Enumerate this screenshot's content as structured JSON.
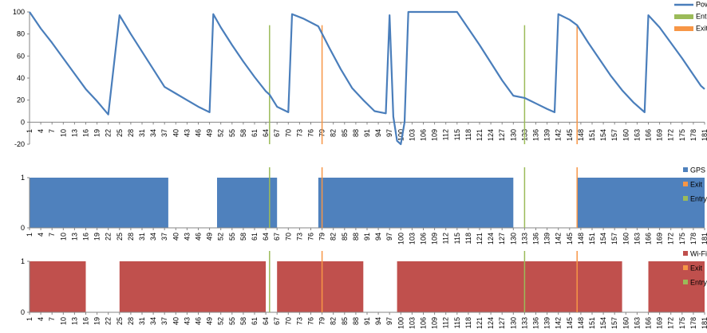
{
  "chart_data": [
    {
      "type": "line",
      "title": "",
      "xlabel": "",
      "ylabel": "",
      "ylim": [
        -20,
        100
      ],
      "yticks": [
        -20,
        0,
        20,
        40,
        60,
        80,
        100
      ],
      "xlim": [
        1,
        181
      ],
      "xtick_start": 1,
      "xtick_step": 3,
      "grid": false,
      "legend": "top-right",
      "series": [
        {
          "name": "Power",
          "color": "#4a7ebb",
          "points": [
            [
              1,
              100
            ],
            [
              2,
              95
            ],
            [
              4,
              85
            ],
            [
              7,
              72
            ],
            [
              10,
              58
            ],
            [
              13,
              44
            ],
            [
              16,
              30
            ],
            [
              19,
              19
            ],
            [
              22,
              7
            ],
            [
              25,
              97
            ],
            [
              28,
              80
            ],
            [
              31,
              64
            ],
            [
              34,
              48
            ],
            [
              37,
              32
            ],
            [
              40,
              26
            ],
            [
              43,
              20
            ],
            [
              46,
              14
            ],
            [
              49,
              9
            ],
            [
              50,
              98
            ],
            [
              52,
              86
            ],
            [
              55,
              70
            ],
            [
              58,
              55
            ],
            [
              61,
              41
            ],
            [
              64,
              28
            ],
            [
              65,
              25
            ],
            [
              67,
              14
            ],
            [
              70,
              9
            ],
            [
              71,
              98
            ],
            [
              74,
              94
            ],
            [
              78,
              87
            ],
            [
              81,
              67
            ],
            [
              84,
              48
            ],
            [
              87,
              31
            ],
            [
              90,
              20
            ],
            [
              93,
              10
            ],
            [
              96,
              8
            ],
            [
              97,
              97
            ],
            [
              98,
              5
            ],
            [
              99,
              -17
            ],
            [
              100,
              -20
            ],
            [
              101,
              0
            ],
            [
              102,
              100
            ],
            [
              105,
              100
            ],
            [
              110,
              100
            ],
            [
              115,
              100
            ],
            [
              118,
              85
            ],
            [
              121,
              70
            ],
            [
              124,
              54
            ],
            [
              127,
              38
            ],
            [
              130,
              24
            ],
            [
              133,
              22
            ],
            [
              136,
              17
            ],
            [
              139,
              12
            ],
            [
              141,
              9
            ],
            [
              142,
              98
            ],
            [
              145,
              93
            ],
            [
              147,
              88
            ],
            [
              150,
              72
            ],
            [
              153,
              57
            ],
            [
              156,
              42
            ],
            [
              159,
              29
            ],
            [
              162,
              18
            ],
            [
              165,
              9
            ],
            [
              166,
              97
            ],
            [
              169,
              86
            ],
            [
              172,
              72
            ],
            [
              175,
              58
            ],
            [
              178,
              43
            ],
            [
              180,
              33
            ],
            [
              181,
              30
            ]
          ]
        },
        {
          "name": "Entry",
          "color": "#9bbb59",
          "x": [
            65,
            133
          ]
        },
        {
          "name": "Exit",
          "color": "#f79646",
          "x": [
            79,
            147
          ]
        }
      ]
    },
    {
      "type": "bar",
      "title": "",
      "xlabel": "",
      "ylabel": "",
      "ylim": [
        0,
        1
      ],
      "yticks": [
        0,
        1
      ],
      "xlim": [
        1,
        181
      ],
      "xtick_start": 1,
      "xtick_step": 3,
      "grid": false,
      "legend": "right",
      "series": [
        {
          "name": "GPS",
          "color": "#4f81bd",
          "on_ranges": [
            [
              1,
              38
            ],
            [
              51,
              67
            ],
            [
              78,
              130
            ],
            [
              147,
              181
            ]
          ]
        },
        {
          "name": "Exit",
          "color": "#f79646",
          "x": [
            79,
            147
          ]
        },
        {
          "name": "Entry",
          "color": "#9bbb59",
          "x": [
            65,
            133
          ]
        }
      ]
    },
    {
      "type": "bar",
      "title": "",
      "xlabel": "",
      "ylabel": "",
      "ylim": [
        0,
        1
      ],
      "yticks": [
        0,
        1
      ],
      "xlim": [
        1,
        181
      ],
      "xtick_start": 1,
      "xtick_step": 3,
      "grid": false,
      "legend": "right",
      "series": [
        {
          "name": "Wi-Fi",
          "color": "#c0504d",
          "on_ranges": [
            [
              1,
              16
            ],
            [
              25,
              64
            ],
            [
              67,
              90
            ],
            [
              99,
              159
            ],
            [
              166,
              181
            ]
          ]
        },
        {
          "name": "Exit",
          "color": "#f79646",
          "x": [
            79,
            147
          ]
        },
        {
          "name": "Entry",
          "color": "#9bbb59",
          "x": [
            65,
            133
          ]
        }
      ]
    }
  ]
}
